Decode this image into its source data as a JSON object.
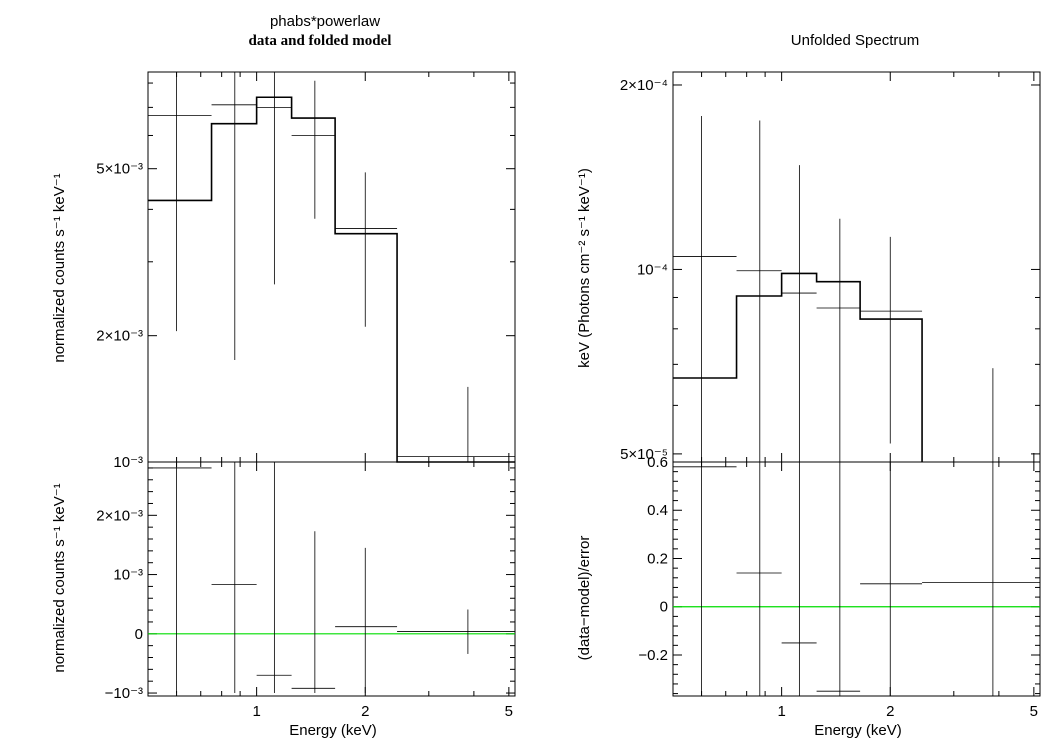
{
  "colors": {
    "axes": "#000000",
    "data": "#000000",
    "model": "#000000",
    "zero_line": "#00dd00"
  },
  "left": {
    "title": "phabs*powerlaw",
    "subtitle": "data and folded model",
    "xlabel": "Energy (keV)",
    "top_ylabel": "normalized counts s⁻¹ keV⁻¹",
    "bottom_ylabel": "normalized counts s⁻¹ keV⁻¹"
  },
  "right": {
    "title": "Unfolded Spectrum",
    "xlabel": "Energy (keV)",
    "top_ylabel": "keV (Photons cm⁻² s⁻¹ keV⁻¹)",
    "bottom_ylabel": "(data−model)/error"
  },
  "chart_data": [
    {
      "type": "line",
      "title": "phabs*powerlaw",
      "subtitle": "data and folded model",
      "xlabel": "",
      "ylabel": "normalized counts s⁻¹ keV⁻¹",
      "xscale": "log",
      "yscale": "log",
      "xlim": [
        0.5,
        5.2
      ],
      "ylim": [
        0.001,
        0.0085
      ],
      "xticks": [
        {
          "v": 1,
          "label": "1"
        },
        {
          "v": 2,
          "label": "2"
        },
        {
          "v": 5,
          "label": "5"
        }
      ],
      "yticks": [
        {
          "v": 0.001,
          "label": "10⁻³"
        },
        {
          "v": 0.002,
          "label": "2×10⁻³"
        },
        {
          "v": 0.005,
          "label": "5×10⁻³"
        }
      ],
      "series": [
        {
          "kind": "data",
          "points": [
            {
              "x": 0.6,
              "xlo": 0.5,
              "xhi": 0.75,
              "y": 0.0067,
              "ylo": 0.00205,
              "yhi": 0.0085
            },
            {
              "x": 0.87,
              "xlo": 0.75,
              "xhi": 1.0,
              "y": 0.0071,
              "ylo": 0.00175,
              "yhi": 0.0085
            },
            {
              "x": 1.12,
              "xlo": 1.0,
              "xhi": 1.25,
              "y": 0.007,
              "ylo": 0.00265,
              "yhi": 0.0085
            },
            {
              "x": 1.45,
              "xlo": 1.25,
              "xhi": 1.65,
              "y": 0.006,
              "ylo": 0.0038,
              "yhi": 0.0081
            },
            {
              "x": 2.0,
              "xlo": 1.65,
              "xhi": 2.45,
              "y": 0.0036,
              "ylo": 0.0021,
              "yhi": 0.0049
            },
            {
              "x": 3.85,
              "xlo": 2.45,
              "xhi": 5.2,
              "y": 0.00103,
              "ylo": 0.001,
              "yhi": 0.00151
            }
          ]
        },
        {
          "kind": "model",
          "edges": [
            0.5,
            0.75,
            1.0,
            1.25,
            1.65,
            2.45,
            5.2
          ],
          "values": [
            0.0042,
            0.0064,
            0.0074,
            0.0066,
            0.0035,
            0.001
          ]
        }
      ]
    },
    {
      "type": "line",
      "title": "",
      "xlabel": "Energy (keV)",
      "ylabel": "normalized counts s⁻¹ keV⁻¹",
      "xscale": "log",
      "yscale": "linear",
      "xlim": [
        0.5,
        5.2
      ],
      "ylim": [
        -0.00105,
        0.0029
      ],
      "xticks": [
        {
          "v": 1,
          "label": "1"
        },
        {
          "v": 2,
          "label": "2"
        },
        {
          "v": 5,
          "label": "5"
        }
      ],
      "yticks": [
        {
          "v": -0.001,
          "label": "−10⁻³"
        },
        {
          "v": 0,
          "label": "0"
        },
        {
          "v": 0.001,
          "label": "10⁻³"
        },
        {
          "v": 0.002,
          "label": "2×10⁻³"
        }
      ],
      "zero_line": true,
      "series": [
        {
          "kind": "data",
          "points": [
            {
              "x": 0.6,
              "xlo": 0.5,
              "xhi": 0.75,
              "y": 0.0028,
              "ylo": -0.001,
              "yhi": 0.0029
            },
            {
              "x": 0.87,
              "xlo": 0.75,
              "xhi": 1.0,
              "y": 0.00083,
              "ylo": -0.001,
              "yhi": 0.0029
            },
            {
              "x": 1.12,
              "xlo": 1.0,
              "xhi": 1.25,
              "y": -0.0007,
              "ylo": -0.001,
              "yhi": 0.0029
            },
            {
              "x": 1.45,
              "xlo": 1.25,
              "xhi": 1.65,
              "y": -0.00092,
              "ylo": -0.001,
              "yhi": 0.00173
            },
            {
              "x": 2.0,
              "xlo": 1.65,
              "xhi": 2.45,
              "y": 0.00012,
              "ylo": -0.001,
              "yhi": 0.00145
            },
            {
              "x": 3.85,
              "xlo": 2.45,
              "xhi": 5.2,
              "y": 4e-05,
              "ylo": -0.00034,
              "yhi": 0.00041
            }
          ]
        }
      ]
    },
    {
      "type": "line",
      "title": "Unfolded Spectrum",
      "xlabel": "",
      "ylabel": "keV (Photons cm⁻² s⁻¹ keV⁻¹)",
      "xscale": "log",
      "yscale": "log",
      "xlim": [
        0.5,
        5.2
      ],
      "ylim": [
        4.85e-05,
        0.00021
      ],
      "xticks": [
        {
          "v": 1,
          "label": "1"
        },
        {
          "v": 2,
          "label": "2"
        },
        {
          "v": 5,
          "label": "5"
        }
      ],
      "yticks": [
        {
          "v": 5e-05,
          "label": "5×10⁻⁵"
        },
        {
          "v": 0.0001,
          "label": "10⁻⁴"
        },
        {
          "v": 0.0002,
          "label": "2×10⁻⁴"
        }
      ],
      "series": [
        {
          "kind": "data",
          "points": [
            {
              "x": 0.6,
              "xlo": 0.5,
              "xhi": 0.75,
              "y": 0.000105,
              "ylo": 4.85e-05,
              "yhi": 0.000178
            },
            {
              "x": 0.87,
              "xlo": 0.75,
              "xhi": 1.0,
              "y": 9.95e-05,
              "ylo": 4.85e-05,
              "yhi": 0.000175
            },
            {
              "x": 1.12,
              "xlo": 1.0,
              "xhi": 1.25,
              "y": 9.15e-05,
              "ylo": 4.85e-05,
              "yhi": 0.000148
            },
            {
              "x": 1.45,
              "xlo": 1.25,
              "xhi": 1.65,
              "y": 8.65e-05,
              "ylo": 4.85e-05,
              "yhi": 0.000121
            },
            {
              "x": 2.0,
              "xlo": 1.65,
              "xhi": 2.45,
              "y": 8.55e-05,
              "ylo": 5.2e-05,
              "yhi": 0.000113
            },
            {
              "x": 3.85,
              "xlo": 2.45,
              "xhi": 5.2,
              "y": null,
              "ylo": 4.85e-05,
              "yhi": 6.9e-05
            }
          ]
        },
        {
          "kind": "model",
          "edges": [
            0.5,
            0.75,
            1.0,
            1.25,
            1.65,
            2.45
          ],
          "values": [
            6.65e-05,
            9.05e-05,
            9.85e-05,
            9.55e-05,
            8.3e-05
          ]
        }
      ]
    },
    {
      "type": "line",
      "title": "",
      "xlabel": "Energy (keV)",
      "ylabel": "(data−model)/error",
      "xscale": "log",
      "yscale": "linear",
      "xlim": [
        0.5,
        5.2
      ],
      "ylim": [
        -0.37,
        0.6
      ],
      "xticks": [
        {
          "v": 1,
          "label": "1"
        },
        {
          "v": 2,
          "label": "2"
        },
        {
          "v": 5,
          "label": "5"
        }
      ],
      "yticks": [
        {
          "v": -0.2,
          "label": "−0.2"
        },
        {
          "v": 0,
          "label": "0"
        },
        {
          "v": 0.2,
          "label": "0.2"
        },
        {
          "v": 0.4,
          "label": "0.4"
        },
        {
          "v": 0.6,
          "label": "0.6"
        }
      ],
      "zero_line": true,
      "series": [
        {
          "kind": "data",
          "points": [
            {
              "x": 0.6,
              "xlo": 0.5,
              "xhi": 0.75,
              "y": 0.58,
              "ylo": -0.37,
              "yhi": 0.6
            },
            {
              "x": 0.87,
              "xlo": 0.75,
              "xhi": 1.0,
              "y": 0.14,
              "ylo": -0.37,
              "yhi": 0.6
            },
            {
              "x": 1.12,
              "xlo": 1.0,
              "xhi": 1.25,
              "y": -0.15,
              "ylo": -0.37,
              "yhi": 0.6
            },
            {
              "x": 1.45,
              "xlo": 1.25,
              "xhi": 1.65,
              "y": -0.35,
              "ylo": -0.37,
              "yhi": 0.6
            },
            {
              "x": 2.0,
              "xlo": 1.65,
              "xhi": 2.45,
              "y": 0.095,
              "ylo": -0.37,
              "yhi": 0.6
            },
            {
              "x": 3.85,
              "xlo": 2.45,
              "xhi": 5.2,
              "y": 0.1,
              "ylo": -0.37,
              "yhi": 0.6
            }
          ]
        }
      ]
    }
  ]
}
